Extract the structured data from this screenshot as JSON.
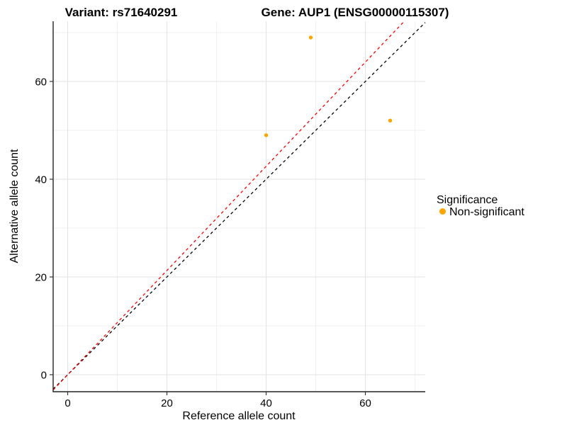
{
  "page": {
    "background": "#ffffff"
  },
  "titles": {
    "variant": "Variant: rs71640291",
    "gene": "Gene: AUP1 (ENSG00000115307)"
  },
  "legend": {
    "title": "Significance",
    "items": [
      {
        "label": "Non-significant",
        "color": "#FFA500",
        "marker": "dot"
      }
    ]
  },
  "colors": {
    "grid_major": "#E3E3E3",
    "grid_minor": "#EFEFEF",
    "axis_line": "#222222",
    "tick_mark": "#333333",
    "text": "#000000",
    "point": "#FFA500",
    "identity_line": "#000000",
    "ratio_line": "#FF0000"
  },
  "chart_data": {
    "type": "scatter",
    "title_left": "Variant: rs71640291",
    "title_right": "Gene: AUP1 (ENSG00000115307)",
    "xlabel": "Reference allele count",
    "ylabel": "Alternative allele count",
    "xlim": [
      -2.93,
      72.07
    ],
    "ylim": [
      -3.48,
      72.32
    ],
    "x_ticks": [
      0,
      20,
      40,
      60
    ],
    "x_minor_ticks": [
      10,
      30,
      50,
      70
    ],
    "y_ticks": [
      0,
      20,
      40,
      60
    ],
    "y_minor_ticks": [
      10,
      30,
      50,
      70
    ],
    "grid": true,
    "legend_position": "right",
    "series": [
      {
        "name": "Non-significant",
        "color": "#FFA500",
        "marker_radius": 2.7,
        "points": [
          {
            "x": 49,
            "y": 69
          },
          {
            "x": 40,
            "y": 49
          },
          {
            "x": 65,
            "y": 52
          }
        ]
      }
    ],
    "ref_lines": [
      {
        "name": "identity-line",
        "color": "#000000",
        "dash": "4 4",
        "width": 1.3,
        "x1": -2.93,
        "y1": -2.93,
        "x2": 72.07,
        "y2": 72.07
      },
      {
        "name": "ratio-line",
        "color": "#FF0000",
        "dash": "4 4",
        "width": 1.3,
        "x1": -2.93,
        "y1": -3.12,
        "x2": 67.84,
        "y2": 72.32
      }
    ]
  }
}
